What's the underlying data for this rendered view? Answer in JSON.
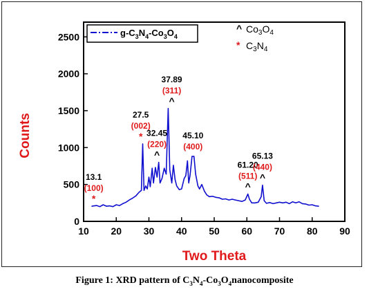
{
  "chart_data": {
    "type": "line",
    "xlabel": "Two Theta",
    "ylabel": "Counts",
    "xlim": [
      10,
      90
    ],
    "ylim": [
      0,
      2700
    ],
    "xticks": [
      "10",
      "20",
      "30",
      "40",
      "50",
      "60",
      "70",
      "80",
      "90"
    ],
    "yticks": [
      "0",
      "500",
      "1000",
      "1500",
      "2000",
      "2500"
    ],
    "grid": false,
    "legend_position": "top-left",
    "series": [
      {
        "name": "g-C3N4-Co3O4",
        "color": "#0f0fd0",
        "points": [
          [
            12.5,
            205
          ],
          [
            14,
            215
          ],
          [
            15,
            200
          ],
          [
            16,
            225
          ],
          [
            17,
            205
          ],
          [
            18,
            210
          ],
          [
            19,
            200
          ],
          [
            20,
            225
          ],
          [
            21,
            215
          ],
          [
            22,
            240
          ],
          [
            23,
            260
          ],
          [
            24,
            290
          ],
          [
            25,
            315
          ],
          [
            26,
            345
          ],
          [
            27,
            395
          ],
          [
            27.7,
            420
          ],
          [
            28.1,
            1050
          ],
          [
            28.5,
            420
          ],
          [
            29,
            480
          ],
          [
            29.5,
            440
          ],
          [
            30,
            600
          ],
          [
            30.4,
            470
          ],
          [
            31,
            720
          ],
          [
            31.4,
            520
          ],
          [
            32,
            730
          ],
          [
            32.5,
            600
          ],
          [
            33,
            800
          ],
          [
            33.4,
            520
          ],
          [
            34,
            580
          ],
          [
            34.7,
            720
          ],
          [
            35.3,
            640
          ],
          [
            35.9,
            1530
          ],
          [
            36.4,
            700
          ],
          [
            37,
            520
          ],
          [
            37.5,
            760
          ],
          [
            38,
            570
          ],
          [
            38.5,
            480
          ],
          [
            39.3,
            430
          ],
          [
            40,
            440
          ],
          [
            40.8,
            580
          ],
          [
            41.3,
            620
          ],
          [
            41.8,
            820
          ],
          [
            42.2,
            520
          ],
          [
            42.6,
            620
          ],
          [
            43.2,
            880
          ],
          [
            43.8,
            880
          ],
          [
            44.3,
            640
          ],
          [
            45,
            480
          ],
          [
            45.5,
            440
          ],
          [
            46.2,
            500
          ],
          [
            47,
            410
          ],
          [
            47.7,
            360
          ],
          [
            48.5,
            335
          ],
          [
            49.5,
            340
          ],
          [
            50.5,
            325
          ],
          [
            51.5,
            320
          ],
          [
            52.5,
            300
          ],
          [
            53.5,
            305
          ],
          [
            54.5,
            290
          ],
          [
            55.5,
            300
          ],
          [
            56.5,
            290
          ],
          [
            57.5,
            280
          ],
          [
            58.5,
            270
          ],
          [
            59.5,
            290
          ],
          [
            60.3,
            370
          ],
          [
            60.8,
            300
          ],
          [
            61.5,
            250
          ],
          [
            62.5,
            250
          ],
          [
            63.5,
            260
          ],
          [
            64.4,
            335
          ],
          [
            64.8,
            490
          ],
          [
            65.3,
            280
          ],
          [
            66,
            245
          ],
          [
            67,
            255
          ],
          [
            68,
            240
          ],
          [
            69,
            250
          ],
          [
            70,
            260
          ],
          [
            71,
            250
          ],
          [
            72,
            260
          ],
          [
            73,
            240
          ],
          [
            74,
            265
          ],
          [
            75,
            250
          ],
          [
            76,
            265
          ],
          [
            77,
            240
          ],
          [
            78,
            235
          ],
          [
            79,
            220
          ],
          [
            80,
            225
          ],
          [
            81,
            210
          ],
          [
            82,
            205
          ]
        ]
      }
    ],
    "peak_annotations": [
      {
        "angle": "13.1",
        "hkl": "(100)",
        "marker": "*",
        "phase": "C3N4",
        "x": 13.1,
        "y": 205
      },
      {
        "angle": "27.5",
        "hkl": "(002)",
        "marker": "*",
        "phase": "C3N4",
        "x": 27.5,
        "y": 1050
      },
      {
        "angle": "32.45",
        "hkl": "(220)",
        "marker": "^",
        "phase": "Co3O4",
        "x": 32.45,
        "y": 800
      },
      {
        "angle": "37.89",
        "hkl": "(311)",
        "marker": "^",
        "phase": "Co3O4",
        "x": 37.0,
        "y": 1530
      },
      {
        "angle": "45.10",
        "hkl": "(400)",
        "marker": "",
        "phase": "Co3O4",
        "x": 43.5,
        "y": 880
      },
      {
        "angle": "61.20",
        "hkl": "(511)",
        "marker": "^",
        "phase": "Co3O4",
        "x": 60.3,
        "y": 370
      },
      {
        "angle": "65.13",
        "hkl": "(440)",
        "marker": "^",
        "phase": "Co3O4",
        "x": 64.8,
        "y": 490
      }
    ],
    "phase_legend": [
      {
        "symbol": "^",
        "label": "Co3O4",
        "color": "#000000"
      },
      {
        "symbol": "*",
        "label": "C3N4",
        "color": "#e0191b"
      }
    ],
    "colors": {
      "axis_label": "#e0191b",
      "annotation_hkl": "#e0191b",
      "annotation_angle": "#000000",
      "line": "#0f0fd0"
    },
    "caption": "Figure 1: XRD pattern of C3N4-Co3O4nanocomposite"
  }
}
